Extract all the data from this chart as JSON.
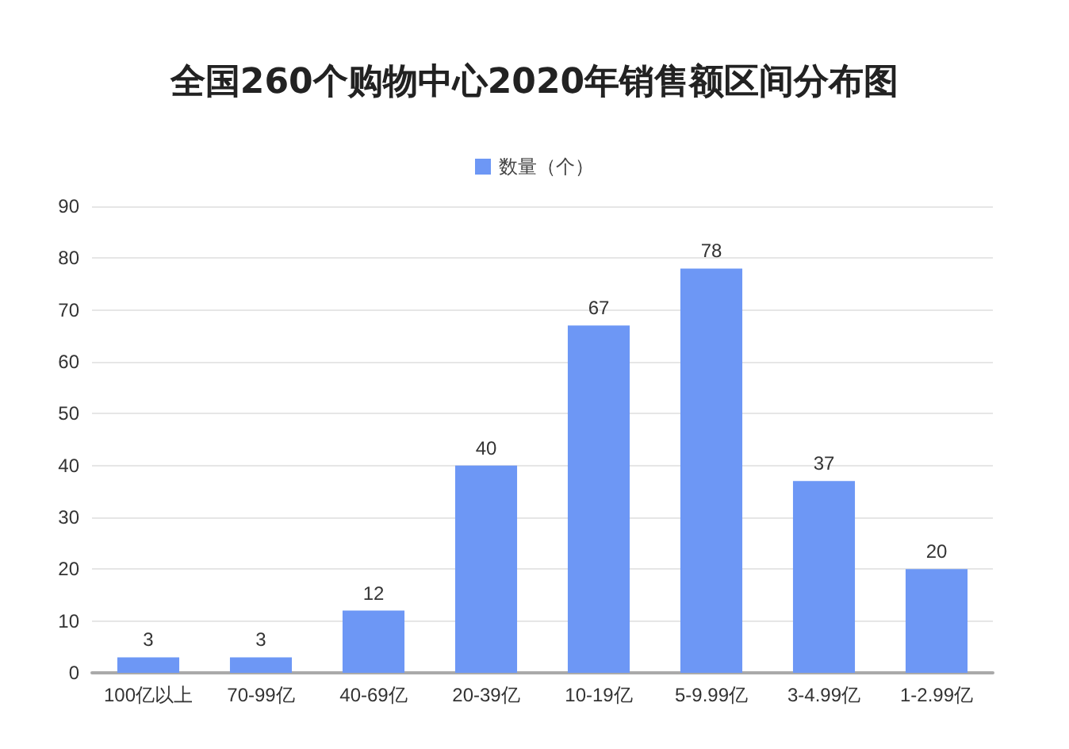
{
  "chart_data": {
    "type": "bar",
    "title": "全国260个购物中心2020年销售额区间分布图",
    "categories": [
      "100亿以上",
      "70-99亿",
      "40-69亿",
      "20-39亿",
      "10-19亿",
      "5-9.99亿",
      "3-4.99亿",
      "1-2.99亿"
    ],
    "series": [
      {
        "name": "数量（个）",
        "color": "#6d97f5",
        "values": [
          3,
          3,
          12,
          40,
          67,
          78,
          37,
          20
        ]
      }
    ],
    "ylim": [
      0,
      90
    ],
    "yticks": [
      0,
      10,
      20,
      30,
      40,
      50,
      60,
      70,
      80,
      90
    ],
    "grid": "y",
    "legend": "top",
    "data_labels": true
  }
}
